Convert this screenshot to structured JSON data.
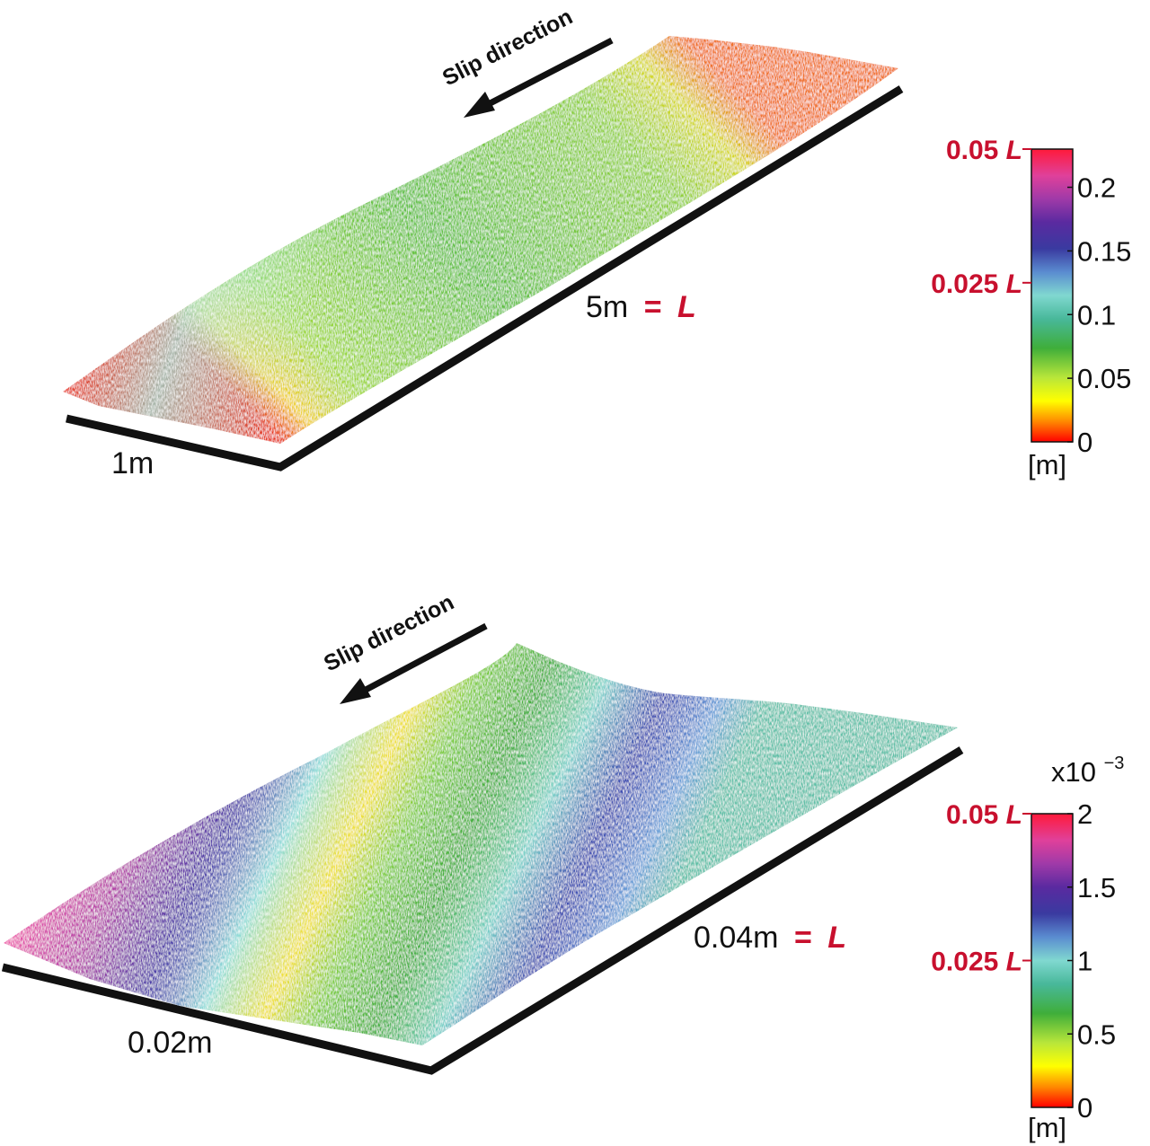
{
  "panels": [
    {
      "id": "top",
      "slip_label": "Slip direction",
      "width_label": "1m",
      "length_value": "5m",
      "length_equals": "=",
      "length_symbol": "L",
      "colorbar": {
        "ticks": [
          "0.2",
          "0.15",
          "0.1",
          "0.05",
          "0"
        ],
        "tick_values": [
          0.2,
          0.15,
          0.1,
          0.05,
          0
        ],
        "range": [
          0,
          0.23
        ],
        "unit": "[m]",
        "exponent": "",
        "ref_labels": [
          {
            "value": "0.05",
            "symbol": "L",
            "at": 0.23
          },
          {
            "value": "0.025",
            "symbol": "L",
            "at": 0.125
          }
        ]
      }
    },
    {
      "id": "bottom",
      "slip_label": "Slip direction",
      "width_label": "0.02m",
      "length_value": "0.04m",
      "length_equals": "=",
      "length_symbol": "L",
      "colorbar": {
        "ticks": [
          "2",
          "1.5",
          "1",
          "0.5",
          "0"
        ],
        "tick_values": [
          2,
          1.5,
          1,
          0.5,
          0
        ],
        "range": [
          0,
          2
        ],
        "unit": "[m]",
        "exponent_base": "x10",
        "exponent_power": "−3",
        "ref_labels": [
          {
            "value": "0.05",
            "symbol": "L",
            "at": 2
          },
          {
            "value": "0.025",
            "symbol": "L",
            "at": 1
          }
        ]
      }
    }
  ],
  "colors": {
    "colormap": [
      "#ff0000",
      "#ff8a00",
      "#ffff00",
      "#6ccf3a",
      "#3fae3a",
      "#80d8d0",
      "#5060c8",
      "#2a2a8c",
      "#8a3aa8",
      "#e040a0",
      "#ff2060"
    ],
    "reference_label": "#c8102e",
    "frame": "#111111"
  }
}
